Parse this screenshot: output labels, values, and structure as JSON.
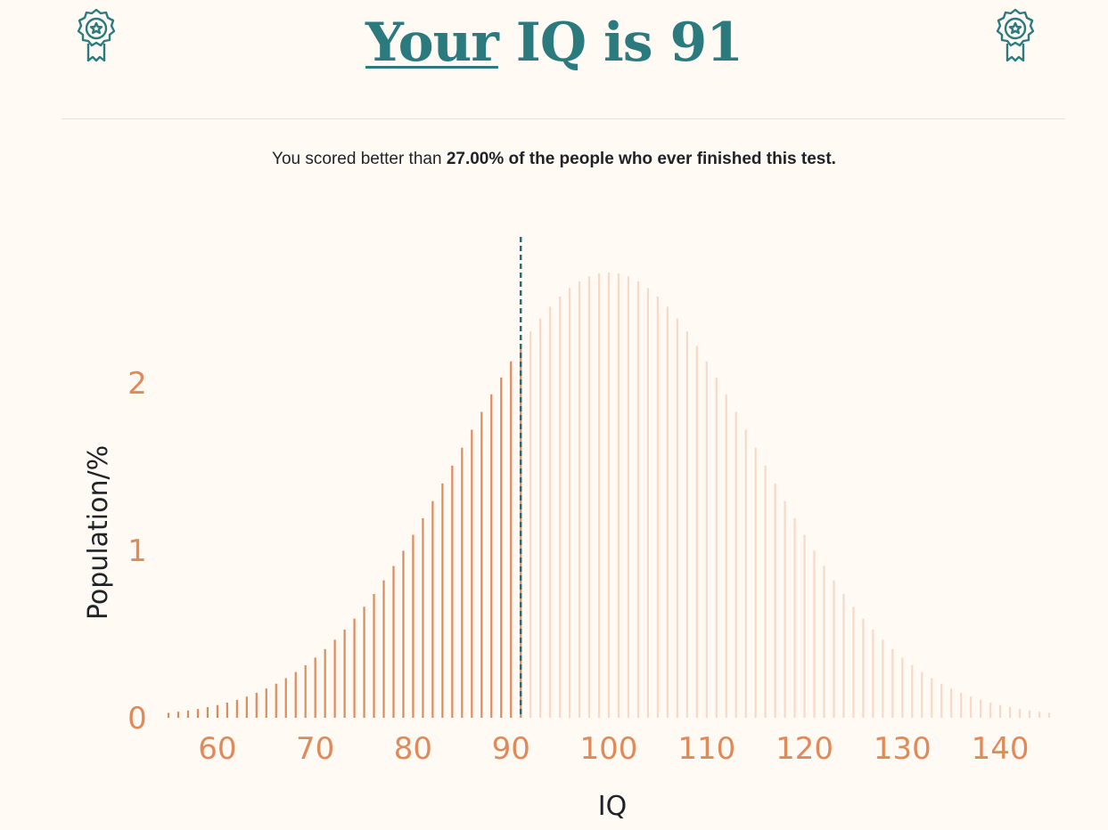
{
  "header": {
    "title_underlined": "Your",
    "title_rest": " IQ is 91",
    "left_icon": "award-badge-icon",
    "right_icon": "award-badge-icon"
  },
  "summary": {
    "prefix": "You scored better than ",
    "percent_text": "27.00% of the people who ever finished this test."
  },
  "colors": {
    "accent": "#2a7a7e",
    "bar_active": "#e08a5a",
    "bar_inactive": "#f7d9c6",
    "tick_text": "#e08a5a",
    "background": "#fffaf4"
  },
  "chart_data": {
    "type": "bar",
    "xlabel": "IQ",
    "ylabel": "Population/%",
    "xlim": [
      55,
      145
    ],
    "ylim": [
      0,
      2.8
    ],
    "xticks": [
      60,
      70,
      80,
      90,
      100,
      110,
      120,
      130,
      140
    ],
    "yticks": [
      0,
      1,
      2
    ],
    "distribution": {
      "mean": 100,
      "sd": 15,
      "step": 1,
      "from": 55,
      "to": 145
    },
    "user_score": 91,
    "percentile": 27.0
  }
}
